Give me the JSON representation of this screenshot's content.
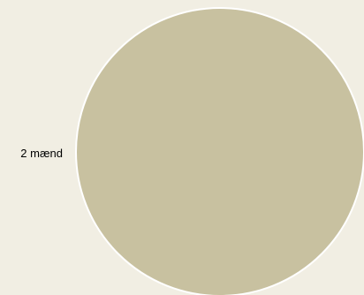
{
  "chart_data": {
    "type": "pie",
    "title": "",
    "slices": [
      {
        "label": "2 mænd",
        "value": 1,
        "color": "#c8c1a0"
      }
    ],
    "colors": {
      "background": "#f1eee3",
      "slice_stroke": "#ffffff",
      "label_text": "#000000"
    }
  }
}
